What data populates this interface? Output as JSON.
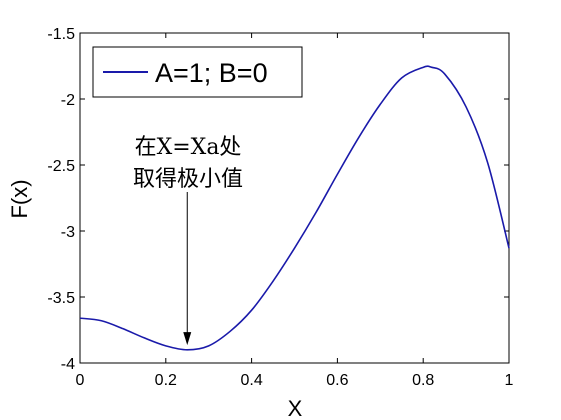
{
  "chart_data": {
    "type": "line",
    "xlabel": "X",
    "ylabel": "F(x)",
    "xlim": [
      0,
      1
    ],
    "ylim": [
      -4,
      -1.5
    ],
    "x_ticks": [
      0,
      0.2,
      0.4,
      0.6,
      0.8,
      1
    ],
    "x_tick_labels": [
      "0",
      "0.2",
      "0.4",
      "0.6",
      "0.8",
      "1"
    ],
    "y_ticks": [
      -4,
      -3.5,
      -3,
      -2.5,
      -2,
      -1.5
    ],
    "y_tick_labels": [
      "-4",
      "-3.5",
      "-3",
      "-2.5",
      "-2",
      "-1.5"
    ],
    "grid": false,
    "legend_position": "top-left",
    "series": [
      {
        "name": "A=1; B=0",
        "color": "#1a1aaa",
        "x": [
          0,
          0.05,
          0.1,
          0.15,
          0.2,
          0.25,
          0.3,
          0.35,
          0.4,
          0.45,
          0.5,
          0.55,
          0.6,
          0.65,
          0.7,
          0.75,
          0.8,
          0.82,
          0.85,
          0.9,
          0.95,
          1.0
        ],
        "y": [
          -3.66,
          -3.68,
          -3.74,
          -3.81,
          -3.87,
          -3.9,
          -3.87,
          -3.76,
          -3.6,
          -3.38,
          -3.13,
          -2.86,
          -2.57,
          -2.29,
          -2.04,
          -1.84,
          -1.76,
          -1.76,
          -1.81,
          -2.06,
          -2.48,
          -3.13
        ]
      }
    ],
    "annotation": {
      "lines": [
        "在X=Xa处",
        "取得极小值"
      ],
      "arrow_target": [
        0.25,
        -3.88
      ]
    }
  }
}
